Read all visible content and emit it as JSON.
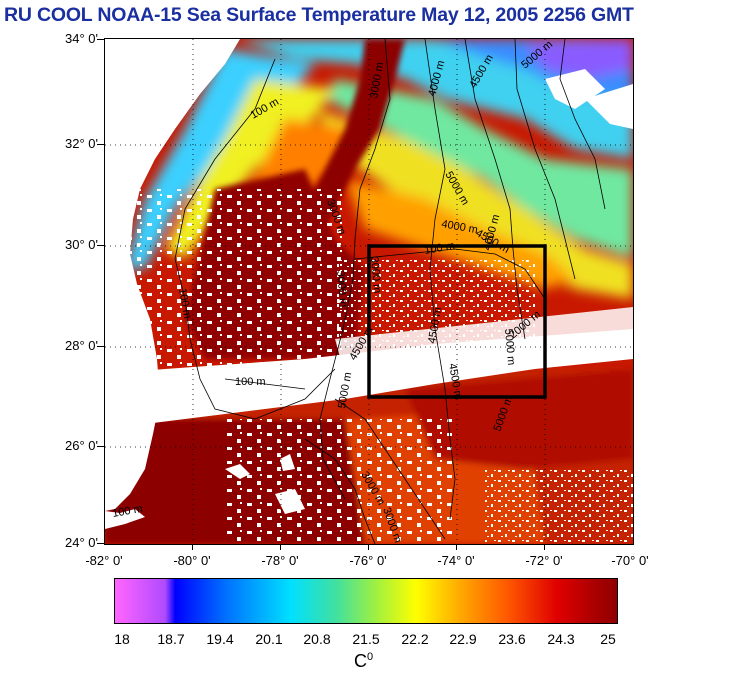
{
  "title": "RU COOL  NOAA-15 Sea Surface Temperature May 12, 2005 2256 GMT",
  "lat_labels": [
    "34° 0'",
    "32° 0'",
    "30° 0'",
    "28° 0'",
    "26° 0'",
    "24° 0'"
  ],
  "lon_labels": [
    "-82° 0'",
    "-80° 0'",
    "-78° 0'",
    "-76° 0'",
    "-74° 0'",
    "-72° 0'",
    "-70° 0'"
  ],
  "contour_labels": [
    "4000 m",
    "4500 m",
    "5000 m",
    "3000 m",
    "100 m",
    "5000 m",
    "3000 m",
    "4000 m",
    "4500 m",
    "4000 m",
    "3000 m",
    "100 m",
    "3000 m",
    "100 m",
    "5000 m",
    "4500 m",
    "4500 m",
    "5000 m",
    "2000 m",
    "100 m",
    "4500 m",
    "5000 m",
    "100 m",
    "3000 m",
    "3000 m"
  ],
  "colorbar": {
    "ticks": [
      "18",
      "18.7",
      "19.4",
      "20.1",
      "20.8",
      "21.5",
      "22.2",
      "22.9",
      "23.6",
      "24.3",
      "25"
    ],
    "unit_base": "C",
    "unit_sup": "0"
  },
  "colors": {
    "title": "#1a2fa0",
    "land": "#ffffff",
    "warm": "#a00000",
    "cloud": "#ffffff"
  }
}
